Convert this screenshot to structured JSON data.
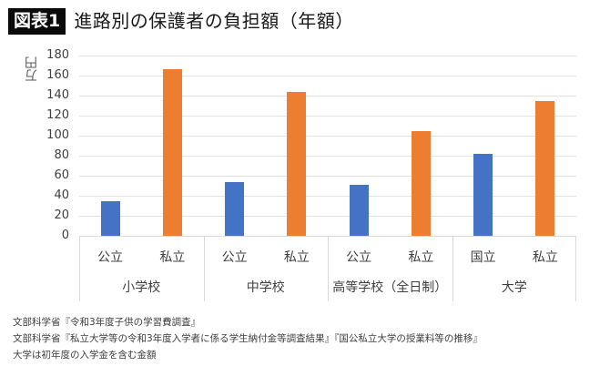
{
  "header": {
    "badge": "図表1",
    "title": "進路別の保護者の負担額（年額）"
  },
  "colors": {
    "public": "#4472c4",
    "private": "#ed7d31",
    "badge_bg": "#0a0a0a",
    "grid": "#e3e3e3"
  },
  "chart_data": {
    "type": "bar",
    "title": "進路別の保護者の負担額（年額）",
    "xlabel": "",
    "ylabel": "万円",
    "ylim": [
      0,
      180
    ],
    "yticks": [
      0,
      20,
      40,
      60,
      80,
      100,
      120,
      140,
      160,
      180
    ],
    "grid": true,
    "legend": "none",
    "categories": [
      {
        "group": "小学校",
        "label": "公立",
        "value": 35,
        "kind": "public"
      },
      {
        "group": "小学校",
        "label": "私立",
        "value": 166,
        "kind": "private"
      },
      {
        "group": "中学校",
        "label": "公立",
        "value": 54,
        "kind": "public"
      },
      {
        "group": "中学校",
        "label": "私立",
        "value": 144,
        "kind": "private"
      },
      {
        "group": "高等学校（全日制）",
        "label": "公立",
        "value": 51,
        "kind": "public"
      },
      {
        "group": "高等学校（全日制）",
        "label": "私立",
        "value": 105,
        "kind": "private"
      },
      {
        "group": "大学",
        "label": "国立",
        "value": 82,
        "kind": "public"
      },
      {
        "group": "大学",
        "label": "私立",
        "value": 135,
        "kind": "private"
      }
    ],
    "groups": [
      "小学校",
      "中学校",
      "高等学校（全日制）",
      "大学"
    ]
  },
  "notes": [
    "文部科学省『令和3年度子供の学習費調査』",
    "文部科学省『私立大学等の令和3年度入学者に係る学生納付金等調査結果』『国公私立大学の授業料等の推移』",
    "大学は初年度の入学金を含む金額"
  ]
}
